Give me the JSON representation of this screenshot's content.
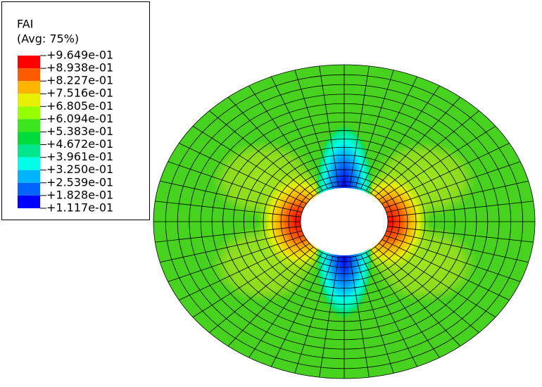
{
  "legend": {
    "title": "FAI",
    "subtitle": "(Avg: 75%)",
    "labels": [
      "+9.649e-01",
      "+8.938e-01",
      "+8.227e-01",
      "+7.516e-01",
      "+6.805e-01",
      "+6.094e-01",
      "+5.383e-01",
      "+4.672e-01",
      "+3.961e-01",
      "+3.250e-01",
      "+2.539e-01",
      "+1.828e-01",
      "+1.117e-01"
    ],
    "colors": [
      "#ff0000",
      "#ff5a00",
      "#ffb400",
      "#e6f000",
      "#96ff00",
      "#3ce61e",
      "#00dc3c",
      "#00e68c",
      "#00ffe6",
      "#00b4ff",
      "#0064ff",
      "#0000ff"
    ]
  }
}
